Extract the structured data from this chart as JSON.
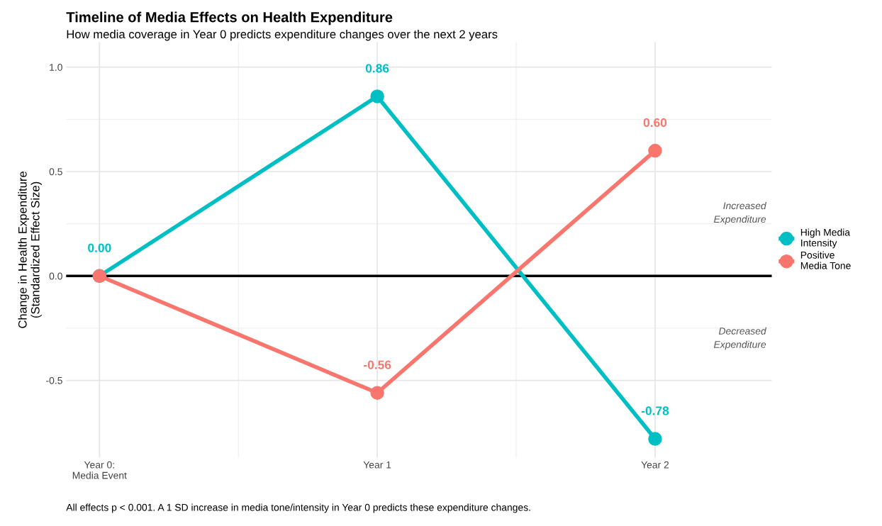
{
  "chart_data": {
    "type": "line",
    "title": "Timeline of Media Effects on Health Expenditure",
    "subtitle": "How media coverage in Year 0 predicts expenditure changes over the next 2 years",
    "ylabel": "Change in Health Expenditure\n(Standardized Effect Size)",
    "categories": [
      "Year 0:\nMedia Event",
      "Year 1",
      "Year 2"
    ],
    "series": [
      {
        "name": "High Media\nIntensity",
        "color": "#00bfc4",
        "values": [
          0,
          0.86,
          -0.78
        ],
        "value_labels": [
          "0.00",
          "0.86",
          "-0.78"
        ]
      },
      {
        "name": "Positive\nMedia Tone",
        "color": "#f8766d",
        "values": [
          0,
          -0.56,
          0.6
        ],
        "value_labels": [
          null,
          "-0.56",
          "0.60"
        ]
      }
    ],
    "ylim": [
      -0.87,
      1.12
    ],
    "yticks": [
      {
        "value": -0.5,
        "label": "-0.5"
      },
      {
        "value": 0,
        "label": "0.0"
      },
      {
        "value": 0.5,
        "label": "0.5"
      },
      {
        "value": 1.0,
        "label": "1.0"
      }
    ],
    "ref_lines": [
      {
        "axis": "y",
        "value": 0,
        "color": "#000000"
      }
    ],
    "annotations": [
      "Increased\nExpenditure",
      "Decreased\nExpenditure",
      "All effects p < 0.001. A 1 SD increase in media tone/intensity in Year 0 predicts these expenditure changes."
    ],
    "grid": true,
    "legend": "right",
    "marker": "circle",
    "line_style": "solid"
  }
}
